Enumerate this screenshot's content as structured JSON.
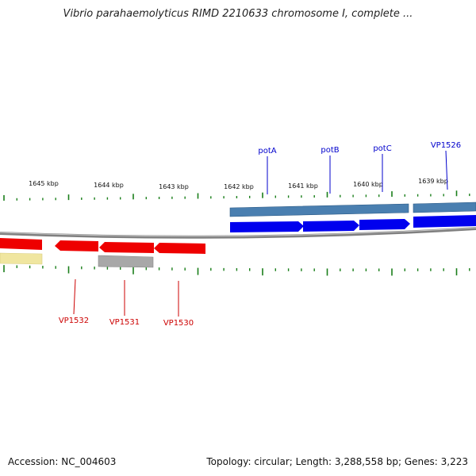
{
  "title": "Vibrio parahaemolyticus RIMD 2210633 chromosome I, complete ...",
  "footer": {
    "accession": "Accession: NC_004603",
    "summary": "Topology: circular; Length: 3,288,558 bp; Genes: 3,223"
  },
  "ticks": [
    {
      "label": "1645 kbp"
    },
    {
      "label": "1644 kbp"
    },
    {
      "label": "1643 kbp"
    },
    {
      "label": "1642 kbp"
    },
    {
      "label": "1641 kbp"
    },
    {
      "label": "1640 kbp"
    },
    {
      "label": "1639 kbp"
    }
  ],
  "genes_top": [
    {
      "name": "potA"
    },
    {
      "name": "potB"
    },
    {
      "name": "potC"
    },
    {
      "name": "VP1526"
    }
  ],
  "genes_bottom": [
    {
      "name": "VP1532"
    },
    {
      "name": "VP1531"
    },
    {
      "name": "VP1530"
    }
  ],
  "colors": {
    "forward_gene": "#0000ee",
    "forward_feature": "#4a7fb0",
    "reverse_gene": "#ee0000",
    "reverse_feature": "#a8a8a8",
    "other_feature": "#f0e6a0",
    "backbone": "#808080",
    "tick": "#1a7f1a",
    "top_label": "#0000cc",
    "bottom_label": "#cc0000"
  }
}
